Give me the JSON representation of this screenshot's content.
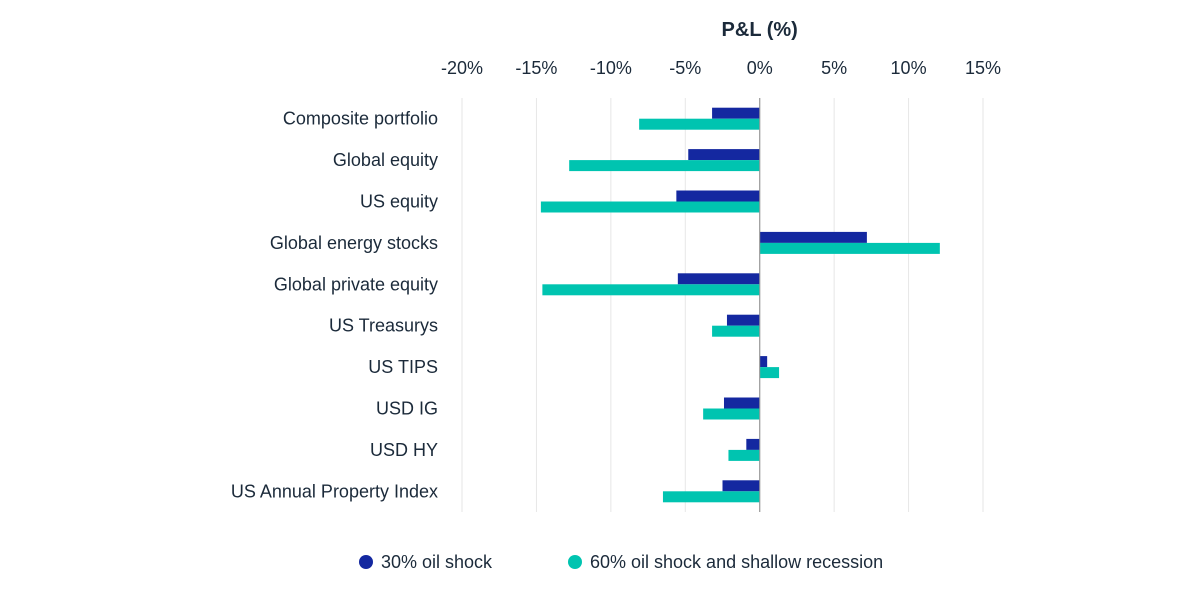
{
  "chart_data": {
    "type": "bar",
    "orientation": "horizontal",
    "title": "",
    "xlabel": "P&L (%)",
    "ylabel": "",
    "xlim": [
      -20,
      15
    ],
    "x_ticks": [
      -20,
      -15,
      -10,
      -5,
      0,
      5,
      10,
      15
    ],
    "x_tick_labels": [
      "-20%",
      "-15%",
      "-10%",
      "-5%",
      "0%",
      "5%",
      "10%",
      "15%"
    ],
    "x_axis_position": "top",
    "grid": true,
    "legend_position": "bottom",
    "categories": [
      "Composite portfolio",
      "Global equity",
      "US equity",
      "Global energy stocks",
      "Global private equity",
      "US Treasurys",
      "US TIPS",
      "USD IG",
      "USD HY",
      "US Annual Property Index"
    ],
    "series": [
      {
        "name": "30% oil shock",
        "color": "#1428a0",
        "values": [
          -3.2,
          -4.8,
          -5.6,
          7.2,
          -5.5,
          -2.2,
          0.5,
          -2.4,
          -0.9,
          -2.5
        ]
      },
      {
        "name": "60% oil shock and shallow recession",
        "color": "#00c4b0",
        "values": [
          -8.1,
          -12.8,
          -14.7,
          12.1,
          -14.6,
          -3.2,
          1.3,
          -3.8,
          -2.1,
          -6.5
        ]
      }
    ]
  }
}
